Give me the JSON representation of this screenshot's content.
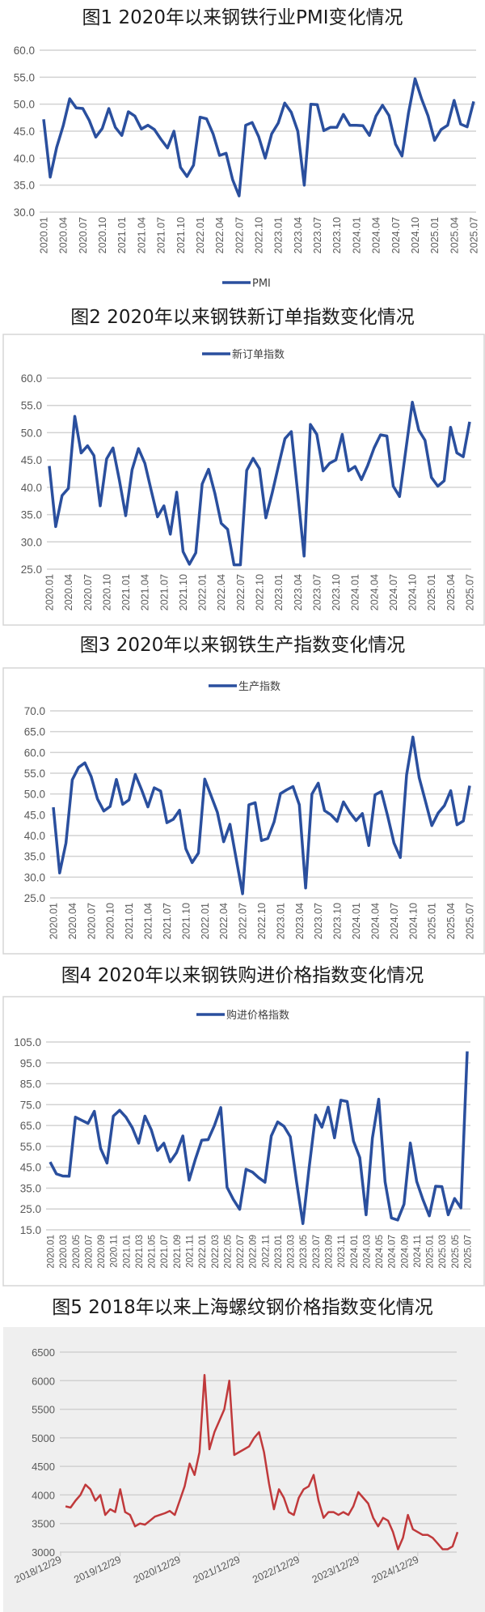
{
  "chart_data": [
    {
      "type": "line",
      "title": "图1  2020年以来钢铁行业PMI变化情况",
      "x_start": "2020.01",
      "x_end": "2025.07",
      "xtick_labels": [
        "2020.01",
        "2020.04",
        "2020.07",
        "2020.10",
        "2021.01",
        "2021.04",
        "2021.07",
        "2021.10",
        "2022.01",
        "2022.04",
        "2022.07",
        "2022.10",
        "2023.01",
        "2023.04",
        "2023.07",
        "2023.10",
        "2024.01",
        "2024.04",
        "2024.07",
        "2024.10",
        "2025.01",
        "2025.04",
        "2025.07"
      ],
      "yticks": [
        "30.0",
        "35.0",
        "40.0",
        "45.0",
        "50.0",
        "55.0",
        "60.0"
      ],
      "ylim": [
        30,
        60
      ],
      "grid": true,
      "legend": "bottom",
      "color": "#2a4f9e",
      "series": [
        {
          "name": "PMI",
          "values": [
            47.2,
            36.5,
            42,
            46,
            51,
            49.3,
            49.2,
            47,
            43.9,
            45.5,
            49.2,
            45.7,
            44.2,
            48.6,
            47.8,
            45.4,
            46.1,
            45.3,
            43.5,
            41.9,
            45,
            38.3,
            36.6,
            38.7,
            47.6,
            47.3,
            44.5,
            40.5,
            40.9,
            36,
            33,
            46.1,
            46.6,
            44,
            40,
            44.5,
            46.5,
            50.2,
            48.5,
            45,
            35,
            50,
            49.9,
            45.1,
            45.7,
            45.7,
            48.1,
            46.1,
            46.1,
            46,
            44.2,
            47.8,
            49.8,
            47.9,
            42.6,
            40.4,
            48.4,
            54.7,
            51,
            47.8,
            43.3,
            45.3,
            46.1,
            50.7,
            46.3,
            45.8,
            50.5
          ]
        }
      ]
    },
    {
      "type": "line",
      "title": "图2  2020年以来钢铁新订单指数变化情况",
      "x_start": "2020.01",
      "x_end": "2025.07",
      "xtick_labels": [
        "2020.01",
        "2020.04",
        "2020.07",
        "2020.10",
        "2021.01",
        "2021.04",
        "2021.07",
        "2021.10",
        "2022.01",
        "2022.04",
        "2022.07",
        "2022.10",
        "2023.01",
        "2023.04",
        "2023.07",
        "2023.10",
        "2024.01",
        "2024.04",
        "2024.07",
        "2024.10",
        "2025.01",
        "2025.04",
        "2025.07"
      ],
      "yticks": [
        "25.0",
        "30.0",
        "35.0",
        "40.0",
        "45.0",
        "50.0",
        "55.0",
        "60.0"
      ],
      "ylim": [
        25,
        60
      ],
      "grid": true,
      "legend": "top",
      "color": "#2a4f9e",
      "series": [
        {
          "name": "新订单指数",
          "values": [
            43.9,
            32.8,
            38.5,
            39.8,
            53,
            46.3,
            47.6,
            45.8,
            36.6,
            45.2,
            47.2,
            41.3,
            34.8,
            43.2,
            47.1,
            44.4,
            39.4,
            34.6,
            36.6,
            31.4,
            39.1,
            28.2,
            25.9,
            28,
            40.6,
            43.3,
            38.9,
            33.4,
            32.3,
            25.8,
            25.8,
            43.1,
            45.3,
            43.4,
            34.4,
            39,
            44,
            48.9,
            50.2,
            39,
            27.4,
            51.5,
            49.7,
            43,
            44.4,
            45,
            49.7,
            43,
            43.8,
            41.4,
            44,
            47.2,
            49.6,
            49.4,
            40.2,
            38.3,
            47,
            55.6,
            50.5,
            48.6,
            41.8,
            40.2,
            41.2,
            51,
            46.3,
            45.6,
            52
          ]
        }
      ]
    },
    {
      "type": "line",
      "title": "图3  2020年以来钢铁生产指数变化情况",
      "x_start": "2020.01",
      "x_end": "2025.07",
      "xtick_labels": [
        "2020.01",
        "2020.04",
        "2020.07",
        "2020.10",
        "2021.01",
        "2021.04",
        "2021.07",
        "2021.10",
        "2022.01",
        "2022.04",
        "2022.07",
        "2022.10",
        "2023.01",
        "2023.04",
        "2023.07",
        "2023.10",
        "2024.01",
        "2024.04",
        "2024.07",
        "2024.10",
        "2025.01",
        "2025.04",
        "2025.07"
      ],
      "yticks": [
        "25.0",
        "30.0",
        "35.0",
        "40.0",
        "45.0",
        "50.0",
        "55.0",
        "60.0",
        "65.0",
        "70.0"
      ],
      "ylim": [
        25,
        70
      ],
      "grid": true,
      "legend": "top",
      "color": "#2a4f9e",
      "series": [
        {
          "name": "生产指数",
          "values": [
            46.8,
            31,
            38.2,
            53.4,
            56.4,
            57.5,
            54.2,
            48.8,
            45.9,
            47,
            53.5,
            47.5,
            48.6,
            54.7,
            51,
            46.9,
            51.5,
            50.7,
            43.1,
            43.9,
            46.1,
            36.8,
            33.5,
            35.8,
            53.6,
            49.6,
            45.6,
            38.5,
            42.7,
            34.3,
            26,
            47.4,
            47.9,
            38.8,
            39.3,
            43.3,
            50.1,
            51,
            51.8,
            47.4,
            27.4,
            50,
            52.6,
            46,
            45,
            43.4,
            48.1,
            45.6,
            43.6,
            45.3,
            37.6,
            49.8,
            50.6,
            44.7,
            38.2,
            34.7,
            54.6,
            63.7,
            53.9,
            48.2,
            42.4,
            45.4,
            47.2,
            50.8,
            42.6,
            43.5,
            52
          ]
        }
      ]
    },
    {
      "type": "line",
      "title": "图4  2020年以来钢铁购进价格指数变化情况",
      "x_start": "2020.01",
      "x_end": "2025.07",
      "xtick_labels": [
        "2020.01",
        "2020.03",
        "2020.05",
        "2020.07",
        "2020.09",
        "2020.11",
        "2021.01",
        "2021.03",
        "2021.05",
        "2021.07",
        "2021.09",
        "2021.11",
        "2022.01",
        "2022.03",
        "2022.05",
        "2022.07",
        "2022.09",
        "2022.11",
        "2023.01",
        "2023.03",
        "2023.05",
        "2023.07",
        "2023.09",
        "2023.11",
        "2024.01",
        "2024.03",
        "2024.05",
        "2024.07",
        "2024.09",
        "2024.11",
        "2025.01",
        "2025.03",
        "2025.05",
        "2025.07"
      ],
      "yticks": [
        "15.0",
        "25.0",
        "35.0",
        "45.0",
        "55.0",
        "65.0",
        "75.0",
        "85.0",
        "95.0",
        "105.0"
      ],
      "ylim": [
        15,
        105
      ],
      "grid": true,
      "legend": "top",
      "color": "#2a4f9e",
      "series": [
        {
          "name": "购进价格指数",
          "values": [
            47.5,
            41.8,
            40.8,
            40.7,
            69,
            67.5,
            66,
            71.8,
            54,
            47,
            69.5,
            72.3,
            69,
            64,
            56.5,
            69.5,
            63,
            53,
            56.5,
            47.6,
            52,
            60,
            38.8,
            49,
            58,
            58.2,
            65,
            73.6,
            35.4,
            29.5,
            24.8,
            44,
            42.7,
            40,
            37.8,
            60,
            66.7,
            64.6,
            59.6,
            38,
            18,
            45,
            70,
            64.2,
            73.8,
            59.1,
            77.1,
            76.5,
            57.5,
            49.6,
            22.2,
            59,
            77.6,
            38,
            20.7,
            19.7,
            27.3,
            56.6,
            38.2,
            29.4,
            21.7,
            35.9,
            35.7,
            22.2,
            30,
            25.5,
            100.5
          ]
        }
      ]
    },
    {
      "type": "line",
      "title": "图5  2018年以来上海螺纹钢价格指数变化情况",
      "x_start": "2019-01",
      "x_end": "2025-08",
      "xtick_labels": [
        "2018/12/29",
        "2019/12/29",
        "2020/12/29",
        "2021/12/29",
        "2022/12/29",
        "2023/12/29",
        "2024/12/29"
      ],
      "yticks": [
        "3000",
        "3500",
        "4000",
        "4500",
        "5000",
        "5500",
        "6000",
        "6500"
      ],
      "ylim": [
        3000,
        6500
      ],
      "grid": true,
      "legend": "none",
      "color": "#c0393b",
      "series": [
        {
          "name": "上海螺纹钢价格指数",
          "values": [
            3800,
            3780,
            3900,
            4000,
            4180,
            4100,
            3900,
            4000,
            3650,
            3750,
            3700,
            4100,
            3700,
            3650,
            3450,
            3500,
            3480,
            3550,
            3620,
            3650,
            3680,
            3720,
            3650,
            3900,
            4150,
            4550,
            4350,
            4750,
            6100,
            4800,
            5100,
            5300,
            5500,
            6000,
            4700,
            4750,
            4800,
            4850,
            5000,
            5100,
            4750,
            4200,
            3750,
            4100,
            3950,
            3700,
            3650,
            3950,
            4100,
            4150,
            4350,
            3900,
            3600,
            3700,
            3700,
            3650,
            3700,
            3650,
            3800,
            4050,
            3950,
            3850,
            3600,
            3450,
            3600,
            3550,
            3350,
            3050,
            3250,
            3650,
            3400,
            3350,
            3300,
            3300,
            3250,
            3150,
            3050,
            3050,
            3100,
            3350
          ]
        }
      ]
    }
  ]
}
